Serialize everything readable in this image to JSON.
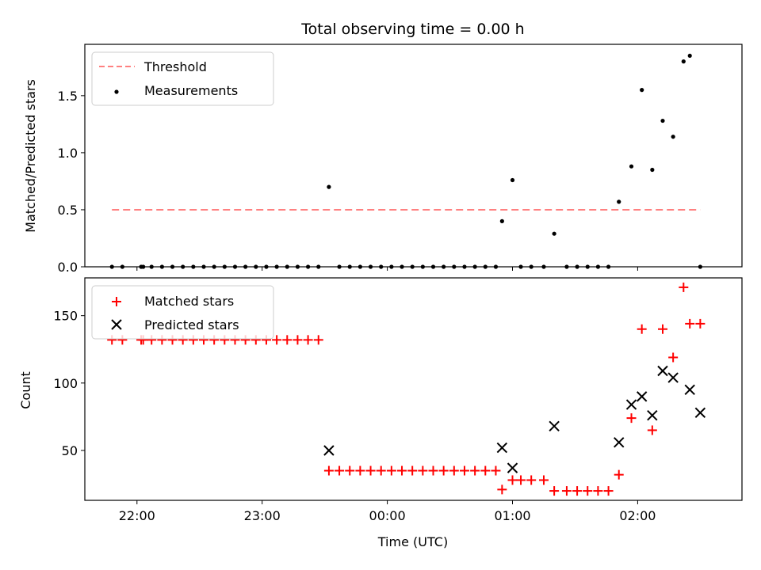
{
  "chart_data": [
    {
      "type": "scatter",
      "title": "Total observing time = 0.00 h",
      "ylabel": "Matched/Predicted stars",
      "xlabel": "",
      "xlim": [
        "21:35",
        "02:50"
      ],
      "ylim": [
        0,
        1.95
      ],
      "yticks": [
        "0.0",
        "0.5",
        "1.0",
        "1.5"
      ],
      "xticks": [
        "22:00",
        "23:00",
        "00:00",
        "01:00",
        "02:00"
      ],
      "legend_position": "top-left",
      "threshold": {
        "name": "Threshold",
        "color": "#ff8080",
        "value": 0.5,
        "x_start": "21:48",
        "x_end": "02:30"
      },
      "series": [
        {
          "name": "Measurements",
          "color": "#000000",
          "x": [
            "21:48",
            "21:53",
            "22:02",
            "22:03",
            "22:07",
            "22:12",
            "22:17",
            "22:22",
            "22:27",
            "22:32",
            "22:37",
            "22:42",
            "22:47",
            "22:52",
            "22:57",
            "23:02",
            "23:07",
            "23:12",
            "23:17",
            "23:22",
            "23:27",
            "23:32",
            "23:37",
            "23:42",
            "23:47",
            "23:52",
            "23:57",
            "00:02",
            "00:07",
            "00:12",
            "00:17",
            "00:22",
            "00:27",
            "00:32",
            "00:37",
            "00:42",
            "00:47",
            "00:52",
            "00:55",
            "01:00",
            "01:04",
            "01:09",
            "01:15",
            "01:20",
            "01:26",
            "01:31",
            "01:36",
            "01:41",
            "01:46",
            "01:51",
            "01:57",
            "02:02",
            "02:07",
            "02:12",
            "02:17",
            "02:22",
            "02:25",
            "02:30"
          ],
          "y": [
            0,
            0,
            0,
            0,
            0,
            0,
            0,
            0,
            0,
            0,
            0,
            0,
            0,
            0,
            0,
            0,
            0,
            0,
            0,
            0,
            0,
            0.7,
            0,
            0,
            0,
            0,
            0,
            0,
            0,
            0,
            0,
            0,
            0,
            0,
            0,
            0,
            0,
            0,
            0.4,
            0.76,
            0,
            0,
            0,
            0.29,
            0,
            0,
            0,
            0,
            0,
            0.57,
            0.88,
            1.55,
            0.85,
            1.28,
            1.14,
            1.8,
            1.85,
            0
          ]
        }
      ]
    },
    {
      "type": "scatter",
      "title": "",
      "ylabel": "Count",
      "xlabel": "Time (UTC)",
      "xlim": [
        "21:35",
        "02:50"
      ],
      "ylim": [
        13,
        178
      ],
      "yticks": [
        "50",
        "100",
        "150"
      ],
      "xticks": [
        "22:00",
        "23:00",
        "00:00",
        "01:00",
        "02:00"
      ],
      "legend_position": "top-left",
      "series": [
        {
          "name": "Matched stars",
          "color": "#ff0000",
          "marker": "plus",
          "x": [
            "21:48",
            "21:53",
            "22:02",
            "22:03",
            "22:07",
            "22:12",
            "22:17",
            "22:22",
            "22:27",
            "22:32",
            "22:37",
            "22:42",
            "22:47",
            "22:52",
            "22:57",
            "23:02",
            "23:07",
            "23:12",
            "23:17",
            "23:22",
            "23:27",
            "23:32",
            "23:37",
            "23:42",
            "23:47",
            "23:52",
            "23:57",
            "00:02",
            "00:07",
            "00:12",
            "00:17",
            "00:22",
            "00:27",
            "00:32",
            "00:37",
            "00:42",
            "00:47",
            "00:52",
            "00:55",
            "01:00",
            "01:04",
            "01:09",
            "01:15",
            "01:20",
            "01:26",
            "01:31",
            "01:36",
            "01:41",
            "01:46",
            "01:51",
            "01:57",
            "02:02",
            "02:07",
            "02:12",
            "02:17",
            "02:22",
            "02:25",
            "02:30"
          ],
          "y": [
            132,
            132,
            132,
            132,
            132,
            132,
            132,
            132,
            132,
            132,
            132,
            132,
            132,
            132,
            132,
            132,
            132,
            132,
            132,
            132,
            132,
            35,
            35,
            35,
            35,
            35,
            35,
            35,
            35,
            35,
            35,
            35,
            35,
            35,
            35,
            35,
            35,
            35,
            21,
            28,
            28,
            28,
            28,
            20,
            20,
            20,
            20,
            20,
            20,
            32,
            74,
            140,
            65,
            140,
            119,
            171,
            144,
            144
          ]
        },
        {
          "name": "Predicted stars",
          "color": "#000000",
          "marker": "x",
          "x": [
            "23:32",
            "00:55",
            "01:00",
            "01:20",
            "01:51",
            "01:57",
            "02:02",
            "02:07",
            "02:12",
            "02:17",
            "02:25",
            "02:30"
          ],
          "y": [
            50,
            52,
            37,
            68,
            56,
            84,
            90,
            76,
            109,
            104,
            95,
            78
          ]
        }
      ]
    }
  ]
}
